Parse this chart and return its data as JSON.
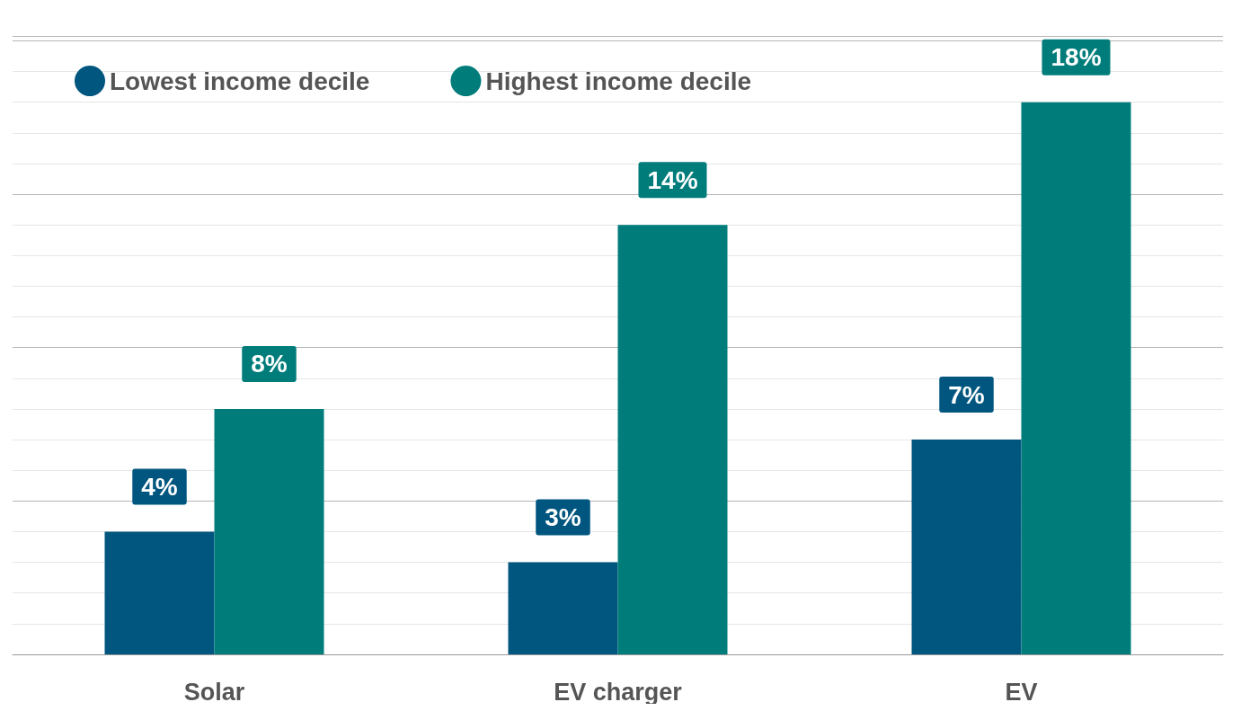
{
  "chart_data": {
    "type": "bar",
    "categories": [
      "Solar",
      "EV charger",
      "EV"
    ],
    "series": [
      {
        "name": "Lowest income decile",
        "color": "#00567f",
        "values": [
          4,
          3,
          7
        ],
        "value_labels": [
          "4%",
          "3%",
          "7%"
        ]
      },
      {
        "name": "Highest income decile",
        "color": "#007d7b",
        "values": [
          8,
          14,
          18
        ],
        "value_labels": [
          "8%",
          "14%",
          "18%"
        ]
      }
    ],
    "tick_labels": "x",
    "grid": "y",
    "legend": "top left"
  }
}
